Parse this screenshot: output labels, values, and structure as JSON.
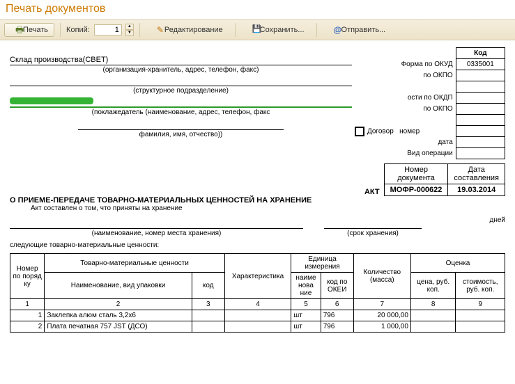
{
  "window": {
    "title": "Печать документов"
  },
  "toolbar": {
    "print_label": "Печать",
    "copies_label": "Копий:",
    "copies_value": "1",
    "edit_label": "Редактирование",
    "save_label": "Сохранить...",
    "send_label": "Отправить..."
  },
  "codes": {
    "kod_header": "Код",
    "okud_label": "Форма по ОКУД",
    "okud_value": "0335001",
    "okpo1_label": "по ОКПО",
    "okdp_label": "ости по ОКДП",
    "okpo2_label": "по ОКПО",
    "dogovor_label": "Договор",
    "nomer_label": "номер",
    "data_label": "дата",
    "vid_label": "Вид операции"
  },
  "fields": {
    "sklad": "Склад производства(СВЕТ)",
    "sklad_caption": "(организация-хранитель, адрес, телефон, факс)",
    "struct_caption": "(структурное подразделение)",
    "pokl_caption": "(поклажедатель (наименование, адрес, телефон, факс",
    "fio_caption": "фамилия, имя, отчество))"
  },
  "docnum": {
    "nomer_header": "Номер\nдокумента",
    "data_header": "Дата\nсоставления",
    "nomer_value": "МОФР-000622",
    "data_value": "19.03.2014",
    "akt_label": "АКТ"
  },
  "heading": "О ПРИЕМЕ-ПЕРЕДАЧЕ ТОВАРНО-МАТЕРИАЛЬНЫХ ЦЕННОСТЕЙ НА ХРАНЕНИЕ",
  "subtext": "Акт составлен о том, что приняты на хранение",
  "storage_caption": "(наименование, номер места хранения)",
  "srok_caption": "(срок хранения)",
  "days_label": "дней",
  "following": "следующие товарно-материальные ценности:",
  "table": {
    "headers": {
      "nomer_po": "Номер по поряд ку",
      "tmc": "Товарно-материальные ценности",
      "naim": "Наименование, вид упаковки",
      "kod": "код",
      "charact": "Характеристика",
      "ed_izm": "Единица измерения",
      "naime": "наиме нова ние",
      "okei": "код по ОКЕИ",
      "kolvo": "Количество (масса)",
      "ocenka": "Оценка",
      "cena": "цена, руб. коп.",
      "stoim": "стоимость, руб. коп."
    },
    "colnums": [
      "1",
      "2",
      "3",
      "4",
      "5",
      "6",
      "7",
      "8",
      "9"
    ],
    "rows": [
      {
        "n": "1",
        "name": "Заклепка алюм сталь 3,2х6",
        "kod": "",
        "char": "",
        "ed": "шт",
        "okei": "796",
        "qty": "20 000,00",
        "cena": "",
        "stoim": ""
      },
      {
        "n": "2",
        "name": "Плата печатная 757 JST (ДСО)",
        "kod": "",
        "char": "",
        "ed": "шт",
        "okei": "796",
        "qty": "1 000,00",
        "cena": "",
        "stoim": ""
      }
    ]
  },
  "colors": {
    "title": "#cc7a00",
    "toolbar_bg": "#ede3c9",
    "green": "#35b335"
  }
}
